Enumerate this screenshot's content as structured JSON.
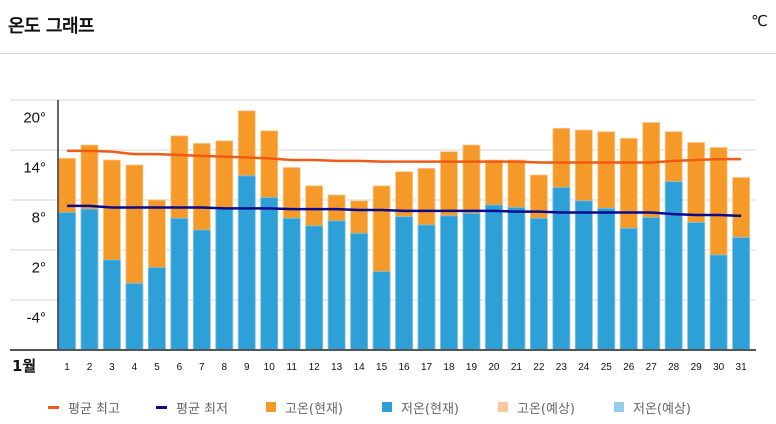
{
  "header": {
    "title": "온도 그래프",
    "unit": "℃"
  },
  "legend": [
    {
      "label": "평균 최고",
      "kind": "line",
      "color": "#f05a14"
    },
    {
      "label": "평균 최저",
      "kind": "line",
      "color": "#0a0a8c"
    },
    {
      "label": "고온(현재)",
      "kind": "square",
      "color": "#f59a28"
    },
    {
      "label": "저온(현재)",
      "kind": "square",
      "color": "#2da0d8"
    },
    {
      "label": "고온(예상)",
      "kind": "square",
      "color": "#fdc99a"
    },
    {
      "label": "저온(예상)",
      "kind": "square",
      "color": "#93cdeb"
    }
  ],
  "chart_data": {
    "type": "bar",
    "title": "",
    "xlabel": "1월",
    "ylabel": "",
    "ylim": [
      -8,
      22
    ],
    "yticks": [
      20,
      14,
      8,
      2,
      -4
    ],
    "ytick_labels": [
      "20°",
      "14°",
      "8°",
      "2°",
      "-4°"
    ],
    "gridlines": [
      22,
      16,
      10,
      4,
      -2
    ],
    "grid": true,
    "legend_position": "bottom",
    "categories": [
      "1",
      "2",
      "3",
      "4",
      "5",
      "6",
      "7",
      "8",
      "9",
      "10",
      "11",
      "12",
      "13",
      "14",
      "15",
      "16",
      "17",
      "18",
      "19",
      "20",
      "21",
      "22",
      "23",
      "24",
      "25",
      "26",
      "27",
      "28",
      "29",
      "30",
      "31"
    ],
    "series": [
      {
        "name": "고온(현재)",
        "type": "bar",
        "color": "#f59a28",
        "values": [
          15.0,
          16.6,
          14.8,
          14.2,
          10.0,
          17.7,
          16.8,
          17.1,
          20.7,
          18.3,
          13.9,
          11.7,
          10.6,
          9.9,
          11.7,
          13.4,
          13.8,
          15.8,
          16.6,
          14.8,
          14.8,
          13.0,
          18.6,
          18.4,
          18.2,
          17.4,
          19.3,
          18.2,
          16.9,
          16.3,
          12.7
        ]
      },
      {
        "name": "저온(현재)",
        "type": "bar",
        "color": "#2da0d8",
        "values": [
          8.5,
          8.9,
          2.8,
          0.0,
          1.9,
          7.8,
          6.4,
          8.9,
          12.9,
          10.3,
          7.8,
          6.9,
          7.5,
          6.0,
          1.4,
          8.0,
          7.0,
          8.1,
          8.4,
          9.4,
          9.1,
          7.8,
          11.5,
          9.9,
          9.0,
          6.6,
          7.9,
          12.2,
          7.3,
          3.4,
          5.5
        ]
      },
      {
        "name": "평균 최고",
        "type": "line",
        "color": "#f05a14",
        "values": [
          15.9,
          15.9,
          15.8,
          15.5,
          15.5,
          15.4,
          15.3,
          15.2,
          15.1,
          15.0,
          14.8,
          14.8,
          14.7,
          14.7,
          14.6,
          14.6,
          14.6,
          14.6,
          14.6,
          14.6,
          14.6,
          14.5,
          14.5,
          14.5,
          14.5,
          14.5,
          14.5,
          14.7,
          14.8,
          14.9,
          14.9
        ]
      },
      {
        "name": "평균 최저",
        "type": "line",
        "color": "#0a0a8c",
        "values": [
          9.3,
          9.3,
          9.1,
          9.1,
          9.1,
          9.1,
          9.1,
          9.0,
          9.0,
          9.0,
          8.9,
          8.9,
          8.9,
          8.8,
          8.8,
          8.7,
          8.7,
          8.7,
          8.7,
          8.7,
          8.6,
          8.6,
          8.5,
          8.5,
          8.5,
          8.5,
          8.5,
          8.3,
          8.2,
          8.2,
          8.1
        ]
      }
    ]
  }
}
